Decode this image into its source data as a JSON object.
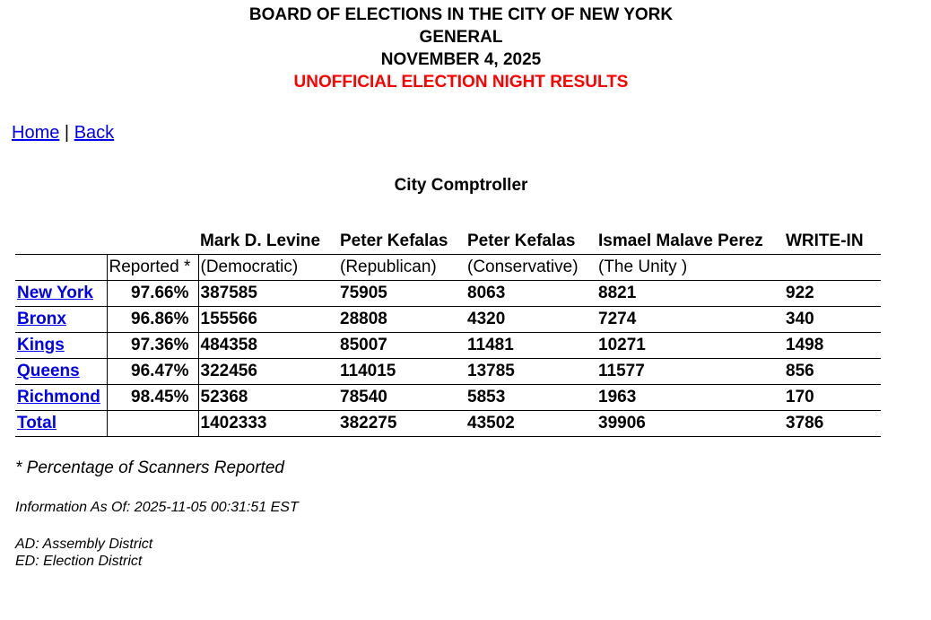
{
  "header": {
    "org": "BOARD OF ELECTIONS IN THE CITY OF NEW YORK",
    "election": "GENERAL",
    "date": "NOVEMBER 4, 2025",
    "status": "UNOFFICIAL ELECTION NIGHT RESULTS"
  },
  "nav": {
    "home": "Home",
    "sep": "|",
    "back": "Back"
  },
  "contest": "City Comptroller",
  "table": {
    "reported_label": "Reported *",
    "candidates": [
      {
        "name": "Mark D. Levine",
        "party": "(Democratic)"
      },
      {
        "name": "Peter Kefalas",
        "party": "(Republican)"
      },
      {
        "name": "Peter Kefalas",
        "party": "(Conservative)"
      },
      {
        "name": "Ismael Malave Perez",
        "party": "(The Unity )"
      },
      {
        "name": "WRITE-IN",
        "party": ""
      }
    ],
    "rows": [
      {
        "county": "New York",
        "reported": "97.66%",
        "votes": [
          "387585",
          "75905",
          "8063",
          "8821",
          "922"
        ]
      },
      {
        "county": "Bronx",
        "reported": "96.86%",
        "votes": [
          "155566",
          "28808",
          "4320",
          "7274",
          "340"
        ]
      },
      {
        "county": "Kings",
        "reported": "97.36%",
        "votes": [
          "484358",
          "85007",
          "11481",
          "10271",
          "1498"
        ]
      },
      {
        "county": "Queens",
        "reported": "96.47%",
        "votes": [
          "322456",
          "114015",
          "13785",
          "11577",
          "856"
        ]
      },
      {
        "county": "Richmond",
        "reported": "98.45%",
        "votes": [
          "52368",
          "78540",
          "5853",
          "1963",
          "170"
        ]
      },
      {
        "county": "Total",
        "reported": "",
        "votes": [
          "1402333",
          "382275",
          "43502",
          "39906",
          "3786"
        ]
      }
    ]
  },
  "footnote": "* Percentage of Scanners Reported",
  "info": "Information As Of: 2025-11-05 00:31:51 EST",
  "legend": [
    "AD: Assembly District",
    "ED: Election District"
  ]
}
